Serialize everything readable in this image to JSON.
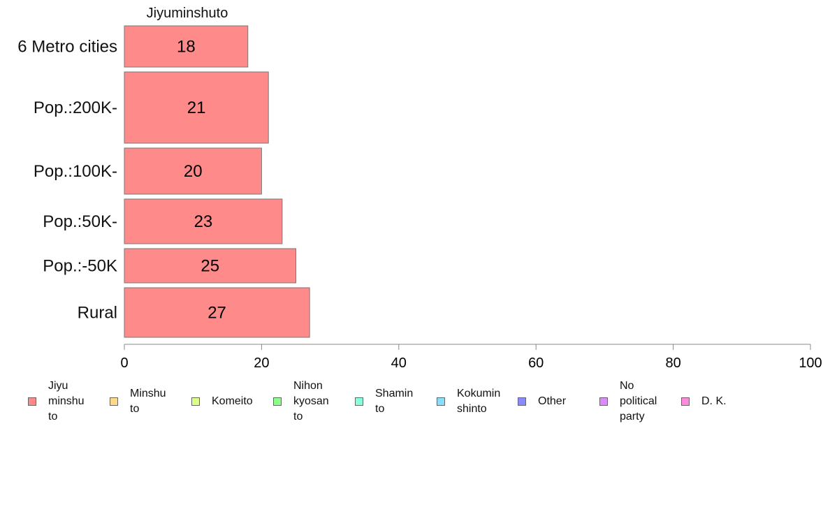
{
  "chart_data": {
    "type": "bar",
    "orientation": "horizontal",
    "title": "Jiyuminshuto",
    "categories": [
      "6 Metro cities",
      "Pop.:200K-",
      "Pop.:100K-",
      "Pop.:50K-",
      "Pop.:-50K",
      "Rural"
    ],
    "values": [
      18,
      21,
      20,
      23,
      25,
      27
    ],
    "xlim": [
      0,
      100
    ],
    "xticks": [
      0,
      20,
      40,
      60,
      80,
      100
    ],
    "xlabel": "",
    "ylabel": "",
    "grid": false,
    "bar_color": "#ff8a8a",
    "legend_position": "bottom",
    "legend": [
      {
        "label": "Jiyu\nminshu\nto",
        "color": "#ff8a8a"
      },
      {
        "label": "Minshu\nto",
        "color": "#ffd98a"
      },
      {
        "label": "Komeito",
        "color": "#ddff8a"
      },
      {
        "label": "Nihon\nkyosan\nto",
        "color": "#8aff8a"
      },
      {
        "label": "Shamin\nto",
        "color": "#8affdd"
      },
      {
        "label": "Kokumin\nshinto",
        "color": "#8addff"
      },
      {
        "label": "Other",
        "color": "#8a8aff"
      },
      {
        "label": "No\npolitical\nparty",
        "color": "#dd8aff"
      },
      {
        "label": "D. K.",
        "color": "#ff8add"
      }
    ]
  }
}
